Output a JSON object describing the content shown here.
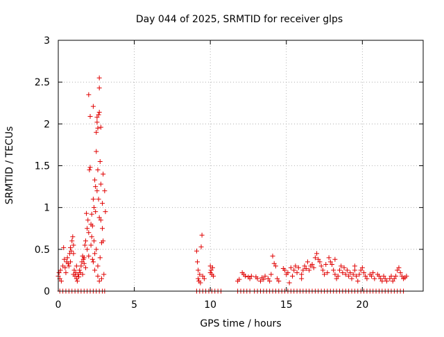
{
  "chart_data": {
    "type": "scatter",
    "title": "Day 044 of 2025, SRMTID for receiver glps",
    "xlabel": "GPS time / hours",
    "ylabel": "SRMTID / TECUs",
    "xlim": [
      0,
      24
    ],
    "ylim": [
      0,
      3
    ],
    "xticks": [
      0,
      5,
      10,
      15,
      20
    ],
    "xtick_labels": [
      "0",
      "5",
      "10",
      "15",
      "20"
    ],
    "yticks": [
      0,
      0.5,
      1,
      1.5,
      2,
      2.5,
      3
    ],
    "ytick_labels": [
      "0",
      "0.5",
      "1",
      "1.5",
      "2",
      "2.5",
      "3"
    ],
    "grid": true,
    "marker": "+",
    "color": "#e00000",
    "series": [
      {
        "name": "SRMTID",
        "points": [
          [
            0.0,
            0.18
          ],
          [
            0.05,
            0.22
          ],
          [
            0.1,
            0.15
          ],
          [
            0.15,
            0.25
          ],
          [
            0.2,
            0.12
          ],
          [
            0.3,
            0.3
          ],
          [
            0.35,
            0.52
          ],
          [
            0.4,
            0.38
          ],
          [
            0.45,
            0.28
          ],
          [
            0.5,
            0.22
          ],
          [
            0.55,
            0.35
          ],
          [
            0.6,
            0.4
          ],
          [
            0.65,
            0.33
          ],
          [
            0.7,
            0.3
          ],
          [
            0.75,
            0.45
          ],
          [
            0.8,
            0.52
          ],
          [
            0.85,
            0.48
          ],
          [
            0.9,
            0.6
          ],
          [
            0.95,
            0.65
          ],
          [
            1.0,
            0.55
          ],
          [
            1.0,
            0.2
          ],
          [
            1.05,
            0.25
          ],
          [
            1.1,
            0.18
          ],
          [
            1.15,
            0.22
          ],
          [
            1.2,
            0.15
          ],
          [
            1.25,
            0.12
          ],
          [
            1.3,
            0.2
          ],
          [
            1.35,
            0.17
          ],
          [
            1.4,
            0.25
          ],
          [
            1.45,
            0.22
          ],
          [
            1.5,
            0.3
          ],
          [
            1.55,
            0.35
          ],
          [
            1.6,
            0.42
          ],
          [
            1.65,
            0.38
          ],
          [
            1.7,
            0.4
          ],
          [
            1.75,
            0.55
          ],
          [
            1.8,
            0.6
          ],
          [
            1.8,
            0.28
          ],
          [
            1.85,
            0.93
          ],
          [
            1.9,
            0.75
          ],
          [
            1.95,
            0.85
          ],
          [
            2.0,
            0.7
          ],
          [
            2.0,
            2.35
          ],
          [
            2.05,
            1.45
          ],
          [
            2.1,
            1.48
          ],
          [
            2.1,
            2.09
          ],
          [
            2.15,
            0.8
          ],
          [
            2.2,
            0.92
          ],
          [
            2.2,
            0.65
          ],
          [
            2.25,
            0.78
          ],
          [
            2.3,
            2.21
          ],
          [
            2.3,
            1.1
          ],
          [
            2.35,
            1.0
          ],
          [
            2.35,
            0.6
          ],
          [
            2.4,
            1.33
          ],
          [
            2.4,
            0.45
          ],
          [
            2.45,
            1.25
          ],
          [
            2.45,
            0.95
          ],
          [
            2.5,
            1.9
          ],
          [
            2.5,
            1.67
          ],
          [
            2.5,
            0.5
          ],
          [
            2.55,
            2.08
          ],
          [
            2.55,
            2.02
          ],
          [
            2.55,
            1.2
          ],
          [
            2.6,
            1.95
          ],
          [
            2.6,
            1.45
          ],
          [
            2.6,
            0.3
          ],
          [
            2.65,
            2.11
          ],
          [
            2.65,
            1.1
          ],
          [
            2.7,
            2.55
          ],
          [
            2.7,
            2.43
          ],
          [
            2.7,
            2.14
          ],
          [
            2.7,
            0.88
          ],
          [
            2.75,
            1.55
          ],
          [
            2.75,
            0.4
          ],
          [
            2.8,
            1.96
          ],
          [
            2.8,
            1.28
          ],
          [
            2.8,
            0.85
          ],
          [
            2.85,
            0.58
          ],
          [
            2.9,
            0.75
          ],
          [
            2.9,
            1.05
          ],
          [
            2.95,
            1.4
          ],
          [
            2.95,
            0.6
          ],
          [
            3.0,
            0.2
          ],
          [
            3.05,
            1.2
          ],
          [
            3.1,
            0.95
          ],
          [
            2.6,
            0.18
          ],
          [
            2.7,
            0.12
          ],
          [
            2.85,
            0.15
          ],
          [
            2.3,
            0.35
          ],
          [
            1.7,
            0.33
          ],
          [
            1.9,
            0.5
          ],
          [
            2.0,
            0.42
          ],
          [
            2.15,
            0.55
          ],
          [
            2.25,
            0.38
          ],
          [
            2.4,
            0.25
          ],
          [
            1.2,
            0.3
          ],
          [
            0.8,
            0.35
          ],
          [
            1.0,
            0.45
          ],
          [
            1.6,
            0.2
          ],
          [
            9.1,
            0.48
          ],
          [
            9.15,
            0.35
          ],
          [
            9.2,
            0.25
          ],
          [
            9.3,
            0.2
          ],
          [
            9.4,
            0.53
          ],
          [
            9.45,
            0.67
          ],
          [
            9.5,
            0.18
          ],
          [
            9.6,
            0.15
          ],
          [
            9.25,
            0.12
          ],
          [
            9.35,
            0.1
          ],
          [
            9.2,
            0.15
          ],
          [
            10.0,
            0.3
          ],
          [
            10.05,
            0.25
          ],
          [
            10.1,
            0.2
          ],
          [
            10.15,
            0.28
          ],
          [
            10.2,
            0.18
          ],
          [
            10.0,
            0.22
          ],
          [
            11.8,
            0.12
          ],
          [
            11.9,
            0.14
          ],
          [
            12.1,
            0.22
          ],
          [
            12.2,
            0.2
          ],
          [
            12.3,
            0.18
          ],
          [
            12.5,
            0.17
          ],
          [
            12.6,
            0.15
          ],
          [
            12.7,
            0.18
          ],
          [
            13.0,
            0.17
          ],
          [
            13.1,
            0.15
          ],
          [
            13.3,
            0.12
          ],
          [
            13.4,
            0.16
          ],
          [
            13.5,
            0.14
          ],
          [
            13.6,
            0.18
          ],
          [
            13.8,
            0.15
          ],
          [
            13.9,
            0.12
          ],
          [
            14.0,
            0.2
          ],
          [
            14.1,
            0.42
          ],
          [
            14.2,
            0.33
          ],
          [
            14.3,
            0.3
          ],
          [
            14.4,
            0.15
          ],
          [
            14.8,
            0.27
          ],
          [
            14.9,
            0.25
          ],
          [
            15.0,
            0.2
          ],
          [
            15.1,
            0.22
          ],
          [
            15.2,
            0.1
          ],
          [
            15.4,
            0.18
          ],
          [
            15.5,
            0.25
          ],
          [
            15.6,
            0.3
          ],
          [
            15.7,
            0.22
          ],
          [
            15.8,
            0.28
          ],
          [
            16.0,
            0.2
          ],
          [
            16.1,
            0.25
          ],
          [
            16.2,
            0.3
          ],
          [
            16.3,
            0.27
          ],
          [
            16.4,
            0.35
          ],
          [
            16.5,
            0.25
          ],
          [
            16.6,
            0.3
          ],
          [
            16.7,
            0.32
          ],
          [
            16.8,
            0.28
          ],
          [
            16.9,
            0.4
          ],
          [
            17.0,
            0.45
          ],
          [
            17.1,
            0.38
          ],
          [
            17.2,
            0.35
          ],
          [
            17.3,
            0.3
          ],
          [
            17.4,
            0.25
          ],
          [
            17.5,
            0.2
          ],
          [
            17.7,
            0.22
          ],
          [
            17.8,
            0.4
          ],
          [
            17.9,
            0.35
          ],
          [
            18.0,
            0.32
          ],
          [
            18.1,
            0.25
          ],
          [
            18.2,
            0.2
          ],
          [
            18.3,
            0.15
          ],
          [
            18.4,
            0.18
          ],
          [
            18.5,
            0.25
          ],
          [
            18.6,
            0.3
          ],
          [
            18.7,
            0.22
          ],
          [
            18.8,
            0.28
          ],
          [
            18.9,
            0.2
          ],
          [
            19.0,
            0.25
          ],
          [
            19.1,
            0.18
          ],
          [
            19.2,
            0.22
          ],
          [
            19.3,
            0.15
          ],
          [
            19.4,
            0.2
          ],
          [
            19.5,
            0.25
          ],
          [
            19.6,
            0.18
          ],
          [
            19.7,
            0.12
          ],
          [
            19.8,
            0.2
          ],
          [
            19.9,
            0.25
          ],
          [
            20.0,
            0.28
          ],
          [
            20.1,
            0.22
          ],
          [
            20.2,
            0.18
          ],
          [
            20.3,
            0.15
          ],
          [
            20.5,
            0.2
          ],
          [
            20.6,
            0.18
          ],
          [
            20.7,
            0.22
          ],
          [
            20.8,
            0.15
          ],
          [
            21.0,
            0.2
          ],
          [
            21.1,
            0.18
          ],
          [
            21.2,
            0.15
          ],
          [
            21.3,
            0.12
          ],
          [
            21.4,
            0.18
          ],
          [
            21.5,
            0.15
          ],
          [
            21.6,
            0.12
          ],
          [
            21.8,
            0.15
          ],
          [
            21.9,
            0.18
          ],
          [
            22.0,
            0.12
          ],
          [
            22.1,
            0.15
          ],
          [
            22.2,
            0.18
          ],
          [
            22.3,
            0.25
          ],
          [
            22.4,
            0.28
          ],
          [
            22.5,
            0.22
          ],
          [
            22.6,
            0.18
          ],
          [
            22.7,
            0.15
          ],
          [
            22.8,
            0.16
          ],
          [
            22.9,
            0.18
          ],
          [
            18.2,
            0.38
          ],
          [
            17.6,
            0.32
          ],
          [
            16.0,
            0.15
          ],
          [
            15.3,
            0.28
          ],
          [
            14.5,
            0.12
          ],
          [
            19.5,
            0.3
          ],
          [
            0.1,
            0.0
          ],
          [
            0.3,
            0.0
          ],
          [
            0.5,
            0.0
          ],
          [
            0.7,
            0.0
          ],
          [
            0.9,
            0.0
          ],
          [
            1.1,
            0.0
          ],
          [
            1.3,
            0.0
          ],
          [
            1.5,
            0.0
          ],
          [
            1.7,
            0.0
          ],
          [
            1.9,
            0.0
          ],
          [
            2.1,
            0.0
          ],
          [
            2.3,
            0.0
          ],
          [
            2.5,
            0.0
          ],
          [
            2.7,
            0.0
          ],
          [
            2.9,
            0.0
          ],
          [
            3.05,
            0.0
          ],
          [
            9.1,
            0.0
          ],
          [
            9.3,
            0.0
          ],
          [
            9.5,
            0.0
          ],
          [
            9.7,
            0.0
          ],
          [
            9.9,
            0.0
          ],
          [
            10.1,
            0.0
          ],
          [
            10.3,
            0.0
          ],
          [
            10.5,
            0.0
          ],
          [
            10.7,
            0.0
          ],
          [
            11.8,
            0.0
          ],
          [
            12.0,
            0.0
          ],
          [
            12.2,
            0.0
          ],
          [
            12.4,
            0.0
          ],
          [
            12.6,
            0.0
          ],
          [
            12.9,
            0.0
          ],
          [
            13.1,
            0.0
          ],
          [
            13.3,
            0.0
          ],
          [
            13.5,
            0.0
          ],
          [
            13.7,
            0.0
          ],
          [
            13.9,
            0.0
          ],
          [
            14.1,
            0.0
          ],
          [
            14.3,
            0.0
          ],
          [
            14.5,
            0.0
          ],
          [
            14.7,
            0.0
          ],
          [
            14.9,
            0.0
          ],
          [
            15.1,
            0.0
          ],
          [
            15.3,
            0.0
          ],
          [
            15.5,
            0.0
          ],
          [
            15.7,
            0.0
          ],
          [
            15.9,
            0.0
          ],
          [
            16.1,
            0.0
          ],
          [
            16.3,
            0.0
          ],
          [
            16.5,
            0.0
          ],
          [
            16.7,
            0.0
          ],
          [
            16.9,
            0.0
          ],
          [
            17.1,
            0.0
          ],
          [
            17.3,
            0.0
          ],
          [
            17.5,
            0.0
          ],
          [
            17.7,
            0.0
          ],
          [
            17.9,
            0.0
          ],
          [
            18.1,
            0.0
          ],
          [
            18.3,
            0.0
          ],
          [
            18.5,
            0.0
          ],
          [
            18.7,
            0.0
          ],
          [
            18.9,
            0.0
          ],
          [
            19.1,
            0.0
          ],
          [
            19.3,
            0.0
          ],
          [
            19.5,
            0.0
          ],
          [
            19.7,
            0.0
          ],
          [
            19.9,
            0.0
          ],
          [
            20.1,
            0.0
          ],
          [
            20.3,
            0.0
          ],
          [
            20.5,
            0.0
          ],
          [
            20.7,
            0.0
          ],
          [
            20.9,
            0.0
          ],
          [
            21.1,
            0.0
          ],
          [
            21.3,
            0.0
          ],
          [
            21.5,
            0.0
          ],
          [
            21.7,
            0.0
          ],
          [
            21.9,
            0.0
          ],
          [
            22.1,
            0.0
          ],
          [
            22.3,
            0.0
          ],
          [
            22.5,
            0.0
          ],
          [
            22.7,
            0.0
          ]
        ]
      }
    ]
  }
}
